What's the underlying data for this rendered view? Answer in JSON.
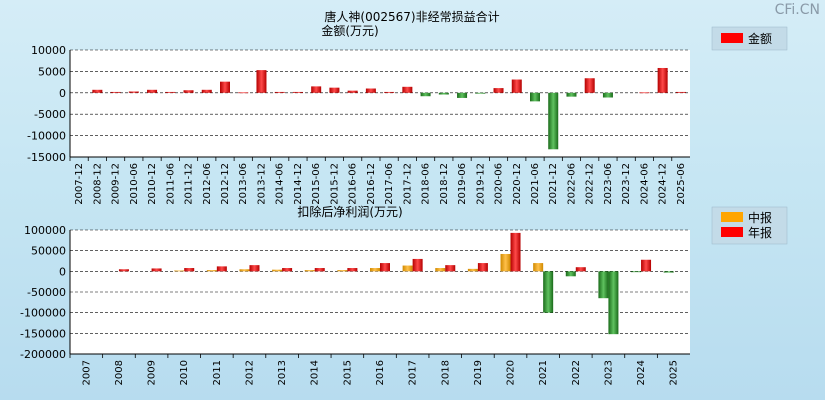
{
  "header": {
    "watermark": "CFi.CN"
  },
  "chart_data": [
    {
      "type": "bar",
      "title": "唐人神(002567)非经常损益合计",
      "subtitle": "金额(万元)",
      "legend": [
        {
          "name": "金额",
          "color": "#ff0000"
        }
      ],
      "legend_position": "top-right",
      "ylim": [
        -15000,
        10000
      ],
      "yticks": [
        10000,
        5000,
        0,
        -5000,
        -10000,
        -15000
      ],
      "grid": true,
      "categories": [
        "2007-12",
        "2008-12",
        "2009-12",
        "2010-06",
        "2010-12",
        "2011-06",
        "2011-12",
        "2012-06",
        "2012-12",
        "2013-06",
        "2013-12",
        "2014-06",
        "2014-12",
        "2015-06",
        "2015-12",
        "2016-06",
        "2016-12",
        "2017-06",
        "2017-12",
        "2018-06",
        "2018-12",
        "2019-06",
        "2019-12",
        "2020-06",
        "2020-12",
        "2021-06",
        "2021-12",
        "2022-06",
        "2022-12",
        "2023-06",
        "2023-12",
        "2024-06",
        "2024-12",
        "2025-06"
      ],
      "series": [
        {
          "name": "金额",
          "values": [
            0,
            700,
            200,
            300,
            700,
            200,
            600,
            700,
            2600,
            100,
            5300,
            200,
            200,
            1500,
            1200,
            500,
            1000,
            200,
            1400,
            -800,
            -400,
            -1200,
            -200,
            1100,
            3100,
            -2000,
            -13200,
            -900,
            3400,
            -1100,
            0,
            100,
            5800,
            200
          ]
        }
      ]
    },
    {
      "type": "bar",
      "subtitle": "扣除后净利润(万元)",
      "legend": [
        {
          "name": "中报",
          "color": "#ffa500"
        },
        {
          "name": "年报",
          "color": "#ff0000"
        }
      ],
      "legend_position": "top-right",
      "ylim": [
        -200000,
        100000
      ],
      "yticks": [
        100000,
        50000,
        0,
        -50000,
        -100000,
        -150000,
        -200000
      ],
      "grid": true,
      "categories": [
        "2007",
        "2008",
        "2009",
        "2010",
        "2011",
        "2012",
        "2013",
        "2014",
        "2015",
        "2016",
        "2017",
        "2018",
        "2019",
        "2020",
        "2021",
        "2022",
        "2023",
        "2024",
        "2025"
      ],
      "series": [
        {
          "name": "中报",
          "values": [
            null,
            null,
            null,
            2000,
            3000,
            5000,
            4000,
            3000,
            3000,
            8000,
            14000,
            8000,
            6000,
            42000,
            20000,
            -12000,
            -65000,
            -2000,
            -3000
          ]
        },
        {
          "name": "年报",
          "values": [
            null,
            5000,
            7000,
            8000,
            12000,
            15000,
            8000,
            8000,
            8000,
            20000,
            30000,
            15000,
            20000,
            93000,
            -100000,
            10000,
            -152000,
            28000,
            null
          ]
        }
      ]
    }
  ]
}
